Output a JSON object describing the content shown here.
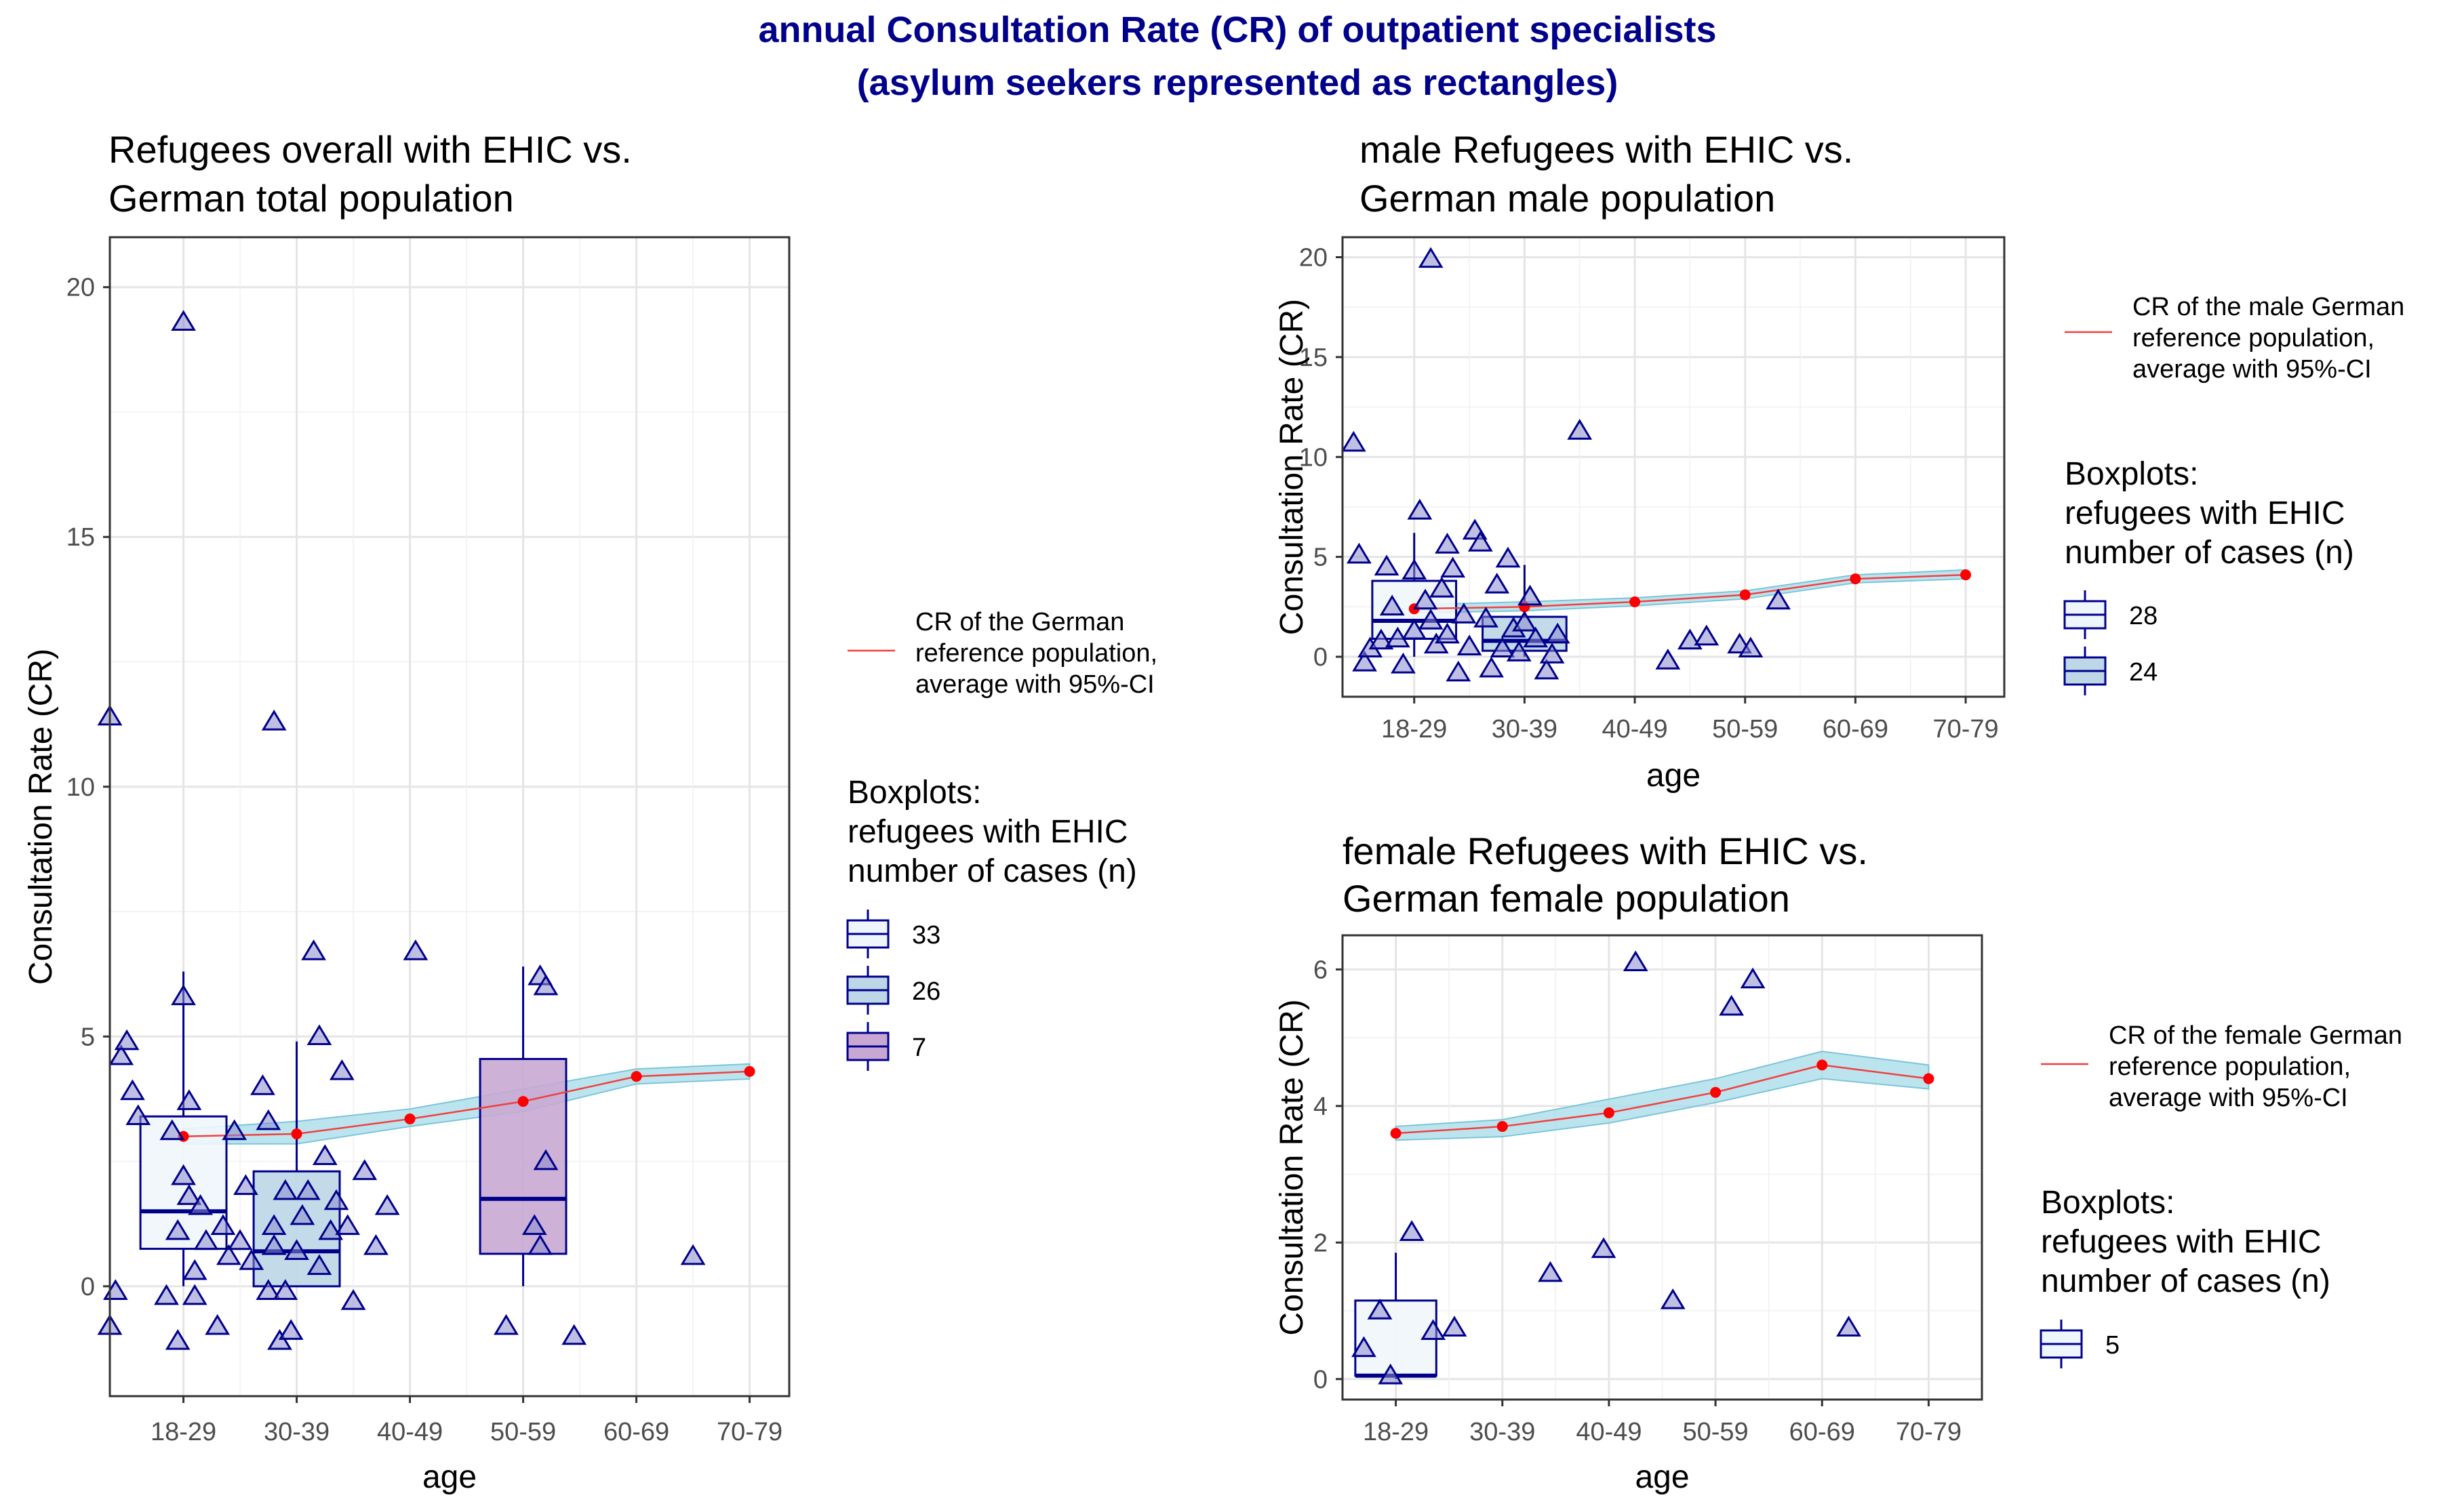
{
  "figure": {
    "title_line1": "annual Consultation Rate (CR) of outpatient specialists",
    "title_line2": "(asylum seekers represented as rectangles)"
  },
  "chart_data": [
    {
      "type": "boxplot",
      "title_line1": "Refugees overall with EHIC vs.",
      "title_line2": " German total population",
      "xlabel": "age",
      "ylabel": "Consultation Rate (CR)",
      "categories": [
        "18-29",
        "30-39",
        "40-49",
        "50-59",
        "60-69",
        "70-79"
      ],
      "ylim": [
        -2.2,
        21.0
      ],
      "yticks": [
        0,
        5,
        10,
        15,
        20
      ],
      "reference": {
        "legend_line1": "CR of the German",
        "legend_line2": " reference population,",
        "legend_line3": " average with 95%-CI",
        "x": [
          1,
          2,
          3,
          4,
          5,
          6
        ],
        "values": [
          3.0,
          3.05,
          3.35,
          3.7,
          4.2,
          4.3
        ],
        "ci_low": [
          2.85,
          2.85,
          3.2,
          3.5,
          4.05,
          4.15
        ],
        "ci_high": [
          3.15,
          3.3,
          3.55,
          3.95,
          4.35,
          4.45
        ]
      },
      "boxes": [
        {
          "n": "33",
          "category": "18-29",
          "whisker_low": 0.0,
          "q1": 0.75,
          "median": 1.5,
          "q3": 3.4,
          "whisker_high": 6.3,
          "fill": "#eff6fb",
          "stroke": "#00008b"
        },
        {
          "n": "26",
          "category": "30-39",
          "whisker_low": 0.0,
          "q1": 0.0,
          "median": 0.7,
          "q3": 2.3,
          "whisker_high": 4.9,
          "fill": "#bdd7e7",
          "stroke": "#00008b"
        },
        {
          "n": "7",
          "category": "50-59",
          "whisker_low": 0.0,
          "q1": 0.65,
          "median": 1.75,
          "q3": 4.55,
          "whisker_high": 6.4,
          "fill": "#c8a8d3",
          "stroke": "#00008b"
        }
      ],
      "points": [
        {
          "x": 0.35,
          "y": 11.4
        },
        {
          "x": 1.0,
          "y": 19.3
        },
        {
          "x": 1.8,
          "y": 11.3
        },
        {
          "x": 0.35,
          "y": -0.8
        },
        {
          "x": 0.4,
          "y": -0.1
        },
        {
          "x": 0.45,
          "y": 4.6
        },
        {
          "x": 0.5,
          "y": 4.9
        },
        {
          "x": 0.55,
          "y": 3.9
        },
        {
          "x": 0.6,
          "y": 3.4
        },
        {
          "x": 0.85,
          "y": -0.2
        },
        {
          "x": 0.9,
          "y": 3.1
        },
        {
          "x": 0.95,
          "y": 1.1
        },
        {
          "x": 0.95,
          "y": -1.1
        },
        {
          "x": 1.0,
          "y": 5.8
        },
        {
          "x": 1.0,
          "y": 2.2
        },
        {
          "x": 1.05,
          "y": 1.8
        },
        {
          "x": 1.05,
          "y": 3.7
        },
        {
          "x": 1.1,
          "y": 0.3
        },
        {
          "x": 1.1,
          "y": -0.2
        },
        {
          "x": 1.15,
          "y": 1.6
        },
        {
          "x": 1.2,
          "y": 0.9
        },
        {
          "x": 1.3,
          "y": -0.8
        },
        {
          "x": 1.35,
          "y": 1.2
        },
        {
          "x": 1.4,
          "y": 0.6
        },
        {
          "x": 1.45,
          "y": 3.1
        },
        {
          "x": 1.5,
          "y": 0.9
        },
        {
          "x": 1.55,
          "y": 2.0
        },
        {
          "x": 1.6,
          "y": 0.5
        },
        {
          "x": 1.7,
          "y": 4.0
        },
        {
          "x": 1.75,
          "y": 3.3
        },
        {
          "x": 1.75,
          "y": -0.1
        },
        {
          "x": 1.8,
          "y": 0.8
        },
        {
          "x": 1.8,
          "y": 1.2
        },
        {
          "x": 1.85,
          "y": -1.1
        },
        {
          "x": 1.9,
          "y": 1.9
        },
        {
          "x": 1.9,
          "y": -0.1
        },
        {
          "x": 1.95,
          "y": -0.9
        },
        {
          "x": 2.0,
          "y": 0.7
        },
        {
          "x": 2.05,
          "y": 1.4
        },
        {
          "x": 2.1,
          "y": 1.9
        },
        {
          "x": 2.15,
          "y": 6.7
        },
        {
          "x": 2.2,
          "y": 5.0
        },
        {
          "x": 2.2,
          "y": 0.4
        },
        {
          "x": 2.25,
          "y": 2.6
        },
        {
          "x": 2.3,
          "y": 1.1
        },
        {
          "x": 2.35,
          "y": 1.7
        },
        {
          "x": 2.4,
          "y": 4.3
        },
        {
          "x": 2.45,
          "y": 1.2
        },
        {
          "x": 2.5,
          "y": -0.3
        },
        {
          "x": 2.6,
          "y": 2.3
        },
        {
          "x": 2.7,
          "y": 0.8
        },
        {
          "x": 2.8,
          "y": 1.6
        },
        {
          "x": 3.05,
          "y": 6.7
        },
        {
          "x": 3.85,
          "y": -0.8
        },
        {
          "x": 4.15,
          "y": 6.2
        },
        {
          "x": 4.2,
          "y": 6.0
        },
        {
          "x": 4.2,
          "y": 2.5
        },
        {
          "x": 4.1,
          "y": 1.2
        },
        {
          "x": 4.15,
          "y": 0.8
        },
        {
          "x": 4.45,
          "y": -1.0
        },
        {
          "x": 5.5,
          "y": 0.6
        }
      ]
    },
    {
      "type": "boxplot",
      "title_line1": "male Refugees with EHIC vs.",
      "title_line2": " German male population",
      "xlabel": "age",
      "ylabel": "Consultation Rate (CR)",
      "categories": [
        "18-29",
        "30-39",
        "40-49",
        "50-59",
        "60-69",
        "70-79"
      ],
      "ylim": [
        -2.0,
        21.0
      ],
      "yticks": [
        0,
        5,
        10,
        15,
        20
      ],
      "reference": {
        "legend_line1": "CR of the male German",
        "legend_line2": " reference population,",
        "legend_line3": " average with 95%-CI",
        "x": [
          1,
          2,
          3,
          4,
          5,
          6
        ],
        "values": [
          2.4,
          2.5,
          2.75,
          3.1,
          3.9,
          4.1
        ],
        "ci_low": [
          2.2,
          2.3,
          2.55,
          2.9,
          3.7,
          3.9
        ],
        "ci_high": [
          2.6,
          2.75,
          2.95,
          3.3,
          4.1,
          4.35
        ]
      },
      "boxes": [
        {
          "n": "28",
          "category": "18-29",
          "whisker_low": 0.0,
          "q1": 0.9,
          "median": 1.8,
          "q3": 3.8,
          "whisker_high": 6.2,
          "fill": "#eff6fb",
          "stroke": "#00008b"
        },
        {
          "n": "24",
          "category": "30-39",
          "whisker_low": 0.0,
          "q1": 0.3,
          "median": 0.8,
          "q3": 2.0,
          "whisker_high": 4.6,
          "fill": "#bdd7e7",
          "stroke": "#00008b"
        }
      ],
      "points": [
        {
          "x": 0.45,
          "y": 10.7
        },
        {
          "x": 1.15,
          "y": 19.9
        },
        {
          "x": 2.5,
          "y": 11.3
        },
        {
          "x": 0.5,
          "y": 5.1
        },
        {
          "x": 0.55,
          "y": -0.3
        },
        {
          "x": 0.6,
          "y": 0.4
        },
        {
          "x": 0.7,
          "y": 0.8
        },
        {
          "x": 0.75,
          "y": 4.5
        },
        {
          "x": 0.8,
          "y": 2.5
        },
        {
          "x": 0.85,
          "y": 0.9
        },
        {
          "x": 0.9,
          "y": -0.4
        },
        {
          "x": 1.0,
          "y": 4.3
        },
        {
          "x": 1.0,
          "y": 1.3
        },
        {
          "x": 1.05,
          "y": 7.3
        },
        {
          "x": 1.1,
          "y": 2.8
        },
        {
          "x": 1.15,
          "y": 1.8
        },
        {
          "x": 1.2,
          "y": 0.6
        },
        {
          "x": 1.25,
          "y": 3.4
        },
        {
          "x": 1.3,
          "y": 5.6
        },
        {
          "x": 1.3,
          "y": 1.1
        },
        {
          "x": 1.35,
          "y": 4.4
        },
        {
          "x": 1.4,
          "y": -0.8
        },
        {
          "x": 1.45,
          "y": 2.1
        },
        {
          "x": 1.5,
          "y": 0.5
        },
        {
          "x": 1.55,
          "y": 6.3
        },
        {
          "x": 1.6,
          "y": 5.7
        },
        {
          "x": 1.65,
          "y": 1.9
        },
        {
          "x": 1.7,
          "y": -0.6
        },
        {
          "x": 1.75,
          "y": 3.6
        },
        {
          "x": 1.8,
          "y": 0.4
        },
        {
          "x": 1.85,
          "y": 4.9
        },
        {
          "x": 1.9,
          "y": 1.4
        },
        {
          "x": 1.95,
          "y": 0.2
        },
        {
          "x": 2.0,
          "y": 1.7
        },
        {
          "x": 2.05,
          "y": 3.0
        },
        {
          "x": 2.1,
          "y": 0.9
        },
        {
          "x": 2.2,
          "y": -0.7
        },
        {
          "x": 2.25,
          "y": 0.1
        },
        {
          "x": 2.3,
          "y": 1.1
        },
        {
          "x": 3.3,
          "y": -0.2
        },
        {
          "x": 3.5,
          "y": 0.8
        },
        {
          "x": 3.65,
          "y": 1.0
        },
        {
          "x": 3.95,
          "y": 0.6
        },
        {
          "x": 4.05,
          "y": 0.4
        },
        {
          "x": 4.3,
          "y": 2.8
        }
      ]
    },
    {
      "type": "boxplot",
      "title_line1": "female Refugees with EHIC vs.",
      "title_line2": " German female population",
      "xlabel": "age",
      "ylabel": "Consultation Rate (CR)",
      "categories": [
        "18-29",
        "30-39",
        "40-49",
        "50-59",
        "60-69",
        "70-79"
      ],
      "ylim": [
        -0.3,
        6.5
      ],
      "yticks": [
        0,
        2,
        4,
        6
      ],
      "reference": {
        "legend_line1": "CR of the female German",
        "legend_line2": " reference population,",
        "legend_line3": " average with 95%-CI",
        "x": [
          1,
          2,
          3,
          4,
          5,
          6
        ],
        "values": [
          3.6,
          3.7,
          3.9,
          4.2,
          4.6,
          4.4
        ],
        "ci_low": [
          3.5,
          3.55,
          3.75,
          4.05,
          4.4,
          4.25
        ],
        "ci_high": [
          3.7,
          3.8,
          4.1,
          4.4,
          4.8,
          4.6
        ]
      },
      "boxes": [
        {
          "n": "5",
          "category": "18-29",
          "whisker_low": 0.0,
          "q1": 0.05,
          "median": 0.05,
          "q3": 1.15,
          "whisker_high": 1.85,
          "fill": "#eff6fb",
          "stroke": "#00008b"
        }
      ],
      "points": [
        {
          "x": 0.7,
          "y": 0.45
        },
        {
          "x": 0.85,
          "y": 1.0
        },
        {
          "x": 0.95,
          "y": 0.05
        },
        {
          "x": 1.15,
          "y": 2.15
        },
        {
          "x": 1.35,
          "y": 0.7
        },
        {
          "x": 1.55,
          "y": 0.75
        },
        {
          "x": 2.45,
          "y": 1.55
        },
        {
          "x": 2.95,
          "y": 1.9
        },
        {
          "x": 3.25,
          "y": 6.1
        },
        {
          "x": 3.6,
          "y": 1.15
        },
        {
          "x": 4.15,
          "y": 5.45
        },
        {
          "x": 4.35,
          "y": 5.85
        },
        {
          "x": 5.25,
          "y": 0.75
        }
      ]
    }
  ],
  "legend": {
    "boxplots_line1": "Boxplots:",
    "boxplots_line2": " refugees with EHIC",
    "boxplots_line3": " number of cases (n)"
  }
}
